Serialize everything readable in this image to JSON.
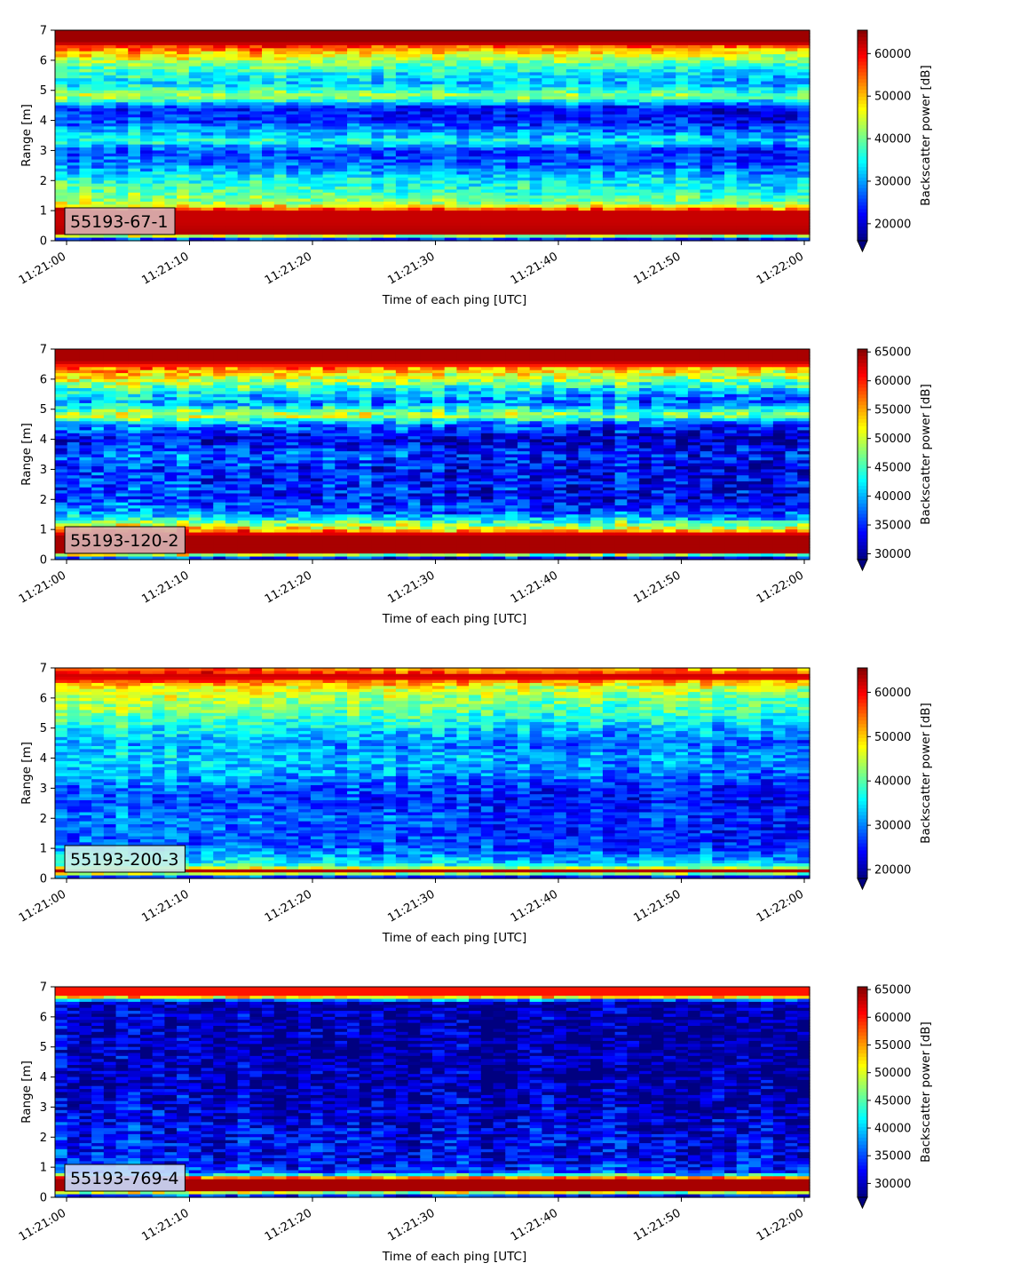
{
  "chart_data": [
    {
      "type": "heatmap",
      "annotation": "55193-67-1",
      "annotation_color": "#d8b0b0",
      "xlabel": "Time of each ping [UTC]",
      "ylabel": "Range [m]",
      "xlim": [
        "11:21:00",
        "11:22:00"
      ],
      "ylim": [
        0,
        7
      ],
      "xticks": [
        "11:21:00",
        "11:21:10",
        "11:21:20",
        "11:21:30",
        "11:21:40",
        "11:21:50",
        "11:22:00"
      ],
      "yticks": [
        0,
        1,
        2,
        3,
        4,
        5,
        6,
        7
      ],
      "colorbar": {
        "label": "Backscatter power [dB]",
        "min": 16000,
        "max": 65500,
        "ticks": [
          20000,
          30000,
          40000,
          50000,
          60000
        ],
        "colormap": "jet",
        "extend": "min"
      },
      "range_profile_m": [
        0.0,
        0.25,
        0.6,
        1.0,
        1.2,
        1.6,
        2.0,
        2.5,
        3.0,
        3.3,
        3.6,
        4.0,
        4.4,
        4.8,
        5.2,
        5.6,
        6.0,
        6.3,
        6.6,
        7.0
      ],
      "power_profile": [
        18000,
        63000,
        62000,
        62000,
        45000,
        40000,
        37000,
        30000,
        27000,
        38000,
        32000,
        26000,
        25000,
        45000,
        34000,
        37000,
        45000,
        52000,
        64000,
        64000
      ]
    },
    {
      "type": "heatmap",
      "annotation": "55193-120-2",
      "annotation_color": "#d8b0b0",
      "xlabel": "Time of each ping [UTC]",
      "ylabel": "Range [m]",
      "xlim": [
        "11:21:00",
        "11:22:00"
      ],
      "ylim": [
        0,
        7
      ],
      "xticks": [
        "11:21:00",
        "11:21:10",
        "11:21:20",
        "11:21:30",
        "11:21:40",
        "11:21:50",
        "11:22:00"
      ],
      "yticks": [
        0,
        1,
        2,
        3,
        4,
        5,
        6,
        7
      ],
      "colorbar": {
        "label": "Backscatter power [dB]",
        "min": 29000,
        "max": 65500,
        "ticks": [
          30000,
          35000,
          40000,
          45000,
          50000,
          55000,
          60000,
          65000
        ],
        "colormap": "jet",
        "extend": "min"
      },
      "range_profile_m": [
        0.0,
        0.25,
        0.8,
        1.1,
        1.5,
        2.0,
        2.5,
        3.0,
        3.5,
        4.0,
        4.5,
        4.8,
        5.2,
        5.6,
        6.0,
        6.3,
        6.6,
        7.0
      ],
      "power_profile": [
        30000,
        64000,
        64000,
        52000,
        40000,
        36000,
        37000,
        36000,
        38000,
        34000,
        40000,
        52000,
        40000,
        44000,
        52000,
        56000,
        64000,
        64000
      ]
    },
    {
      "type": "heatmap",
      "annotation": "55193-200-3",
      "annotation_color": "#c8f0e8",
      "xlabel": "Time of each ping [UTC]",
      "ylabel": "Range [m]",
      "xlim": [
        "11:21:00",
        "11:22:00"
      ],
      "ylim": [
        0,
        7
      ],
      "xticks": [
        "11:21:00",
        "11:21:10",
        "11:21:20",
        "11:21:30",
        "11:21:40",
        "11:21:50",
        "11:22:00"
      ],
      "yticks": [
        0,
        1,
        2,
        3,
        4,
        5,
        6,
        7
      ],
      "colorbar": {
        "label": "Backscatter power [dB]",
        "min": 18000,
        "max": 65500,
        "ticks": [
          20000,
          30000,
          40000,
          50000,
          60000
        ],
        "colormap": "jet",
        "extend": "min"
      },
      "range_profile_m": [
        0.0,
        0.25,
        0.4,
        0.6,
        1.0,
        1.5,
        2.0,
        2.5,
        3.0,
        3.5,
        4.0,
        4.5,
        5.0,
        5.5,
        6.0,
        6.4,
        6.7,
        7.0
      ],
      "power_profile": [
        20000,
        63000,
        40000,
        36000,
        30000,
        29000,
        30000,
        28000,
        29000,
        33000,
        35000,
        32000,
        37000,
        42000,
        45000,
        50000,
        63000,
        55000
      ]
    },
    {
      "type": "heatmap",
      "annotation": "55193-769-4",
      "annotation_color": "#c8d8f8",
      "xlabel": "Time of each ping [UTC]",
      "ylabel": "Range [m]",
      "xlim": [
        "11:21:00",
        "11:22:00"
      ],
      "ylim": [
        0,
        7
      ],
      "xticks": [
        "11:21:00",
        "11:21:10",
        "11:21:20",
        "11:21:30",
        "11:21:40",
        "11:21:50",
        "11:22:00"
      ],
      "yticks": [
        0,
        1,
        2,
        3,
        4,
        5,
        6,
        7
      ],
      "colorbar": {
        "label": "Backscatter power [dB]",
        "min": 27500,
        "max": 65500,
        "ticks": [
          30000,
          35000,
          40000,
          45000,
          50000,
          55000,
          60000,
          65000
        ],
        "colormap": "jet",
        "extend": "min"
      },
      "range_profile_m": [
        0.0,
        0.25,
        0.6,
        0.8,
        1.2,
        1.8,
        2.5,
        3.0,
        4.0,
        5.0,
        6.0,
        6.5,
        6.7,
        7.0
      ],
      "power_profile": [
        28000,
        64000,
        64000,
        36000,
        33000,
        33000,
        32000,
        31000,
        30000,
        29500,
        30000,
        30000,
        60000,
        60000
      ]
    }
  ]
}
